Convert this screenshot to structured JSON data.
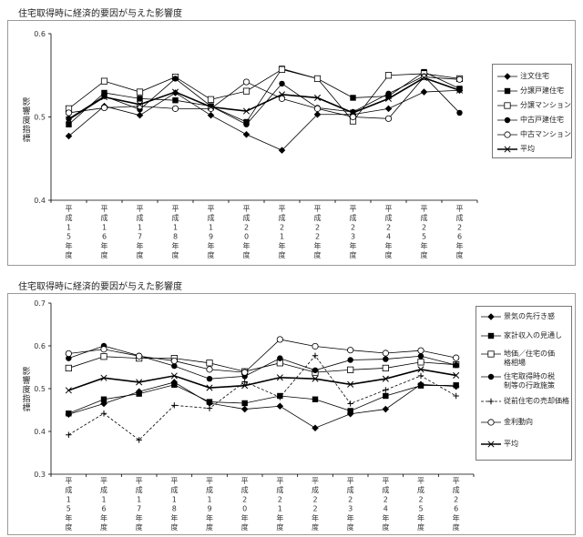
{
  "chart_data": [
    {
      "type": "line",
      "title": "住宅取得時に経済的要因が与えた影響度",
      "ylabel": "影響度指標",
      "ylim": [
        0.4,
        0.6
      ],
      "yticks": [
        "0.4",
        "0.5",
        "0.6"
      ],
      "grid": false,
      "legend_position": "right",
      "categories": [
        "平成15年度",
        "平成16年度",
        "平成17年度",
        "平成18年度",
        "平成19年度",
        "平成20年度",
        "平成21年度",
        "平成22年度",
        "平成23年度",
        "平成24年度",
        "平成25年度",
        "平成26年度"
      ],
      "series": [
        {
          "name": "注文住宅",
          "marker": "diamond-filled",
          "dash": false,
          "values": [
            0.477,
            0.513,
            0.502,
            0.529,
            0.502,
            0.479,
            0.46,
            0.503,
            0.503,
            0.51,
            0.53,
            0.532
          ]
        },
        {
          "name": "分譲戸建住宅",
          "marker": "square-filled",
          "dash": false,
          "values": [
            0.491,
            0.529,
            0.522,
            0.52,
            0.513,
            0.494,
            0.558,
            0.546,
            0.523,
            0.525,
            0.554,
            0.534
          ]
        },
        {
          "name": "分譲マンション",
          "marker": "square-open",
          "dash": false,
          "values": [
            0.51,
            0.543,
            0.53,
            0.548,
            0.521,
            0.531,
            0.557,
            0.546,
            0.495,
            0.55,
            0.552,
            0.546
          ]
        },
        {
          "name": "中古戸建住宅",
          "marker": "circle-filled",
          "dash": false,
          "values": [
            0.498,
            0.525,
            0.509,
            0.546,
            0.513,
            0.491,
            0.54,
            0.511,
            0.506,
            0.528,
            0.549,
            0.505
          ]
        },
        {
          "name": "中古マンション",
          "marker": "circle-open",
          "dash": false,
          "values": [
            0.505,
            0.511,
            0.513,
            0.51,
            0.51,
            0.542,
            0.522,
            0.51,
            0.5,
            0.498,
            0.548,
            0.545
          ]
        },
        {
          "name": "平均",
          "marker": "x",
          "dash": false,
          "bold": true,
          "values": [
            0.497,
            0.524,
            0.515,
            0.53,
            0.512,
            0.507,
            0.527,
            0.523,
            0.505,
            0.522,
            0.547,
            0.532
          ]
        }
      ]
    },
    {
      "type": "line",
      "title": "住宅取得時に経済的要因が与えた影響度",
      "ylabel": "影響度指標",
      "ylim": [
        0.3,
        0.7
      ],
      "yticks": [
        "0.3",
        "0.4",
        "0.5",
        "0.6",
        "0.7"
      ],
      "grid": false,
      "legend_position": "right",
      "categories": [
        "平成15年度",
        "平成16年度",
        "平成17年度",
        "平成18年度",
        "平成19年度",
        "平成20年度",
        "平成21年度",
        "平成22年度",
        "平成23年度",
        "平成24年度",
        "平成25年度",
        "平成26年度"
      ],
      "series": [
        {
          "name": "景気の先行き感",
          "marker": "diamond-filled",
          "dash": false,
          "values": [
            0.44,
            0.465,
            0.493,
            0.515,
            0.466,
            0.452,
            0.459,
            0.408,
            0.441,
            0.452,
            0.51,
            0.505
          ]
        },
        {
          "name": "家計収入の見通し",
          "marker": "square-filled",
          "dash": false,
          "values": [
            0.442,
            0.475,
            0.488,
            0.509,
            0.469,
            0.466,
            0.483,
            0.475,
            0.448,
            0.483,
            0.507,
            0.508
          ]
        },
        {
          "name": "地価／住宅の価格相場",
          "marker": "square-open",
          "dash": false,
          "values": [
            0.548,
            0.575,
            0.571,
            0.571,
            0.56,
            0.54,
            0.56,
            0.538,
            0.544,
            0.548,
            0.562,
            0.556
          ]
        },
        {
          "name": "住宅取得時の税制等の行政施策",
          "marker": "circle-filled",
          "dash": false,
          "values": [
            0.571,
            0.6,
            0.577,
            0.553,
            0.523,
            0.529,
            0.571,
            0.543,
            0.567,
            0.569,
            0.576,
            0.555
          ]
        },
        {
          "name": "従前住宅の売却価格",
          "marker": "plus",
          "dash": true,
          "values": [
            0.392,
            0.442,
            0.38,
            0.461,
            0.454,
            0.516,
            0.48,
            0.577,
            0.465,
            0.497,
            0.53,
            0.483
          ]
        },
        {
          "name": "金利動向",
          "marker": "circle-open",
          "dash": false,
          "values": [
            0.582,
            0.592,
            0.576,
            0.565,
            0.545,
            0.538,
            0.615,
            0.599,
            0.59,
            0.583,
            0.589,
            0.572
          ]
        },
        {
          "name": "平均",
          "marker": "x",
          "dash": false,
          "bold": true,
          "values": [
            0.496,
            0.525,
            0.515,
            0.53,
            0.502,
            0.507,
            0.526,
            0.523,
            0.51,
            0.523,
            0.545,
            0.531
          ]
        }
      ]
    }
  ]
}
